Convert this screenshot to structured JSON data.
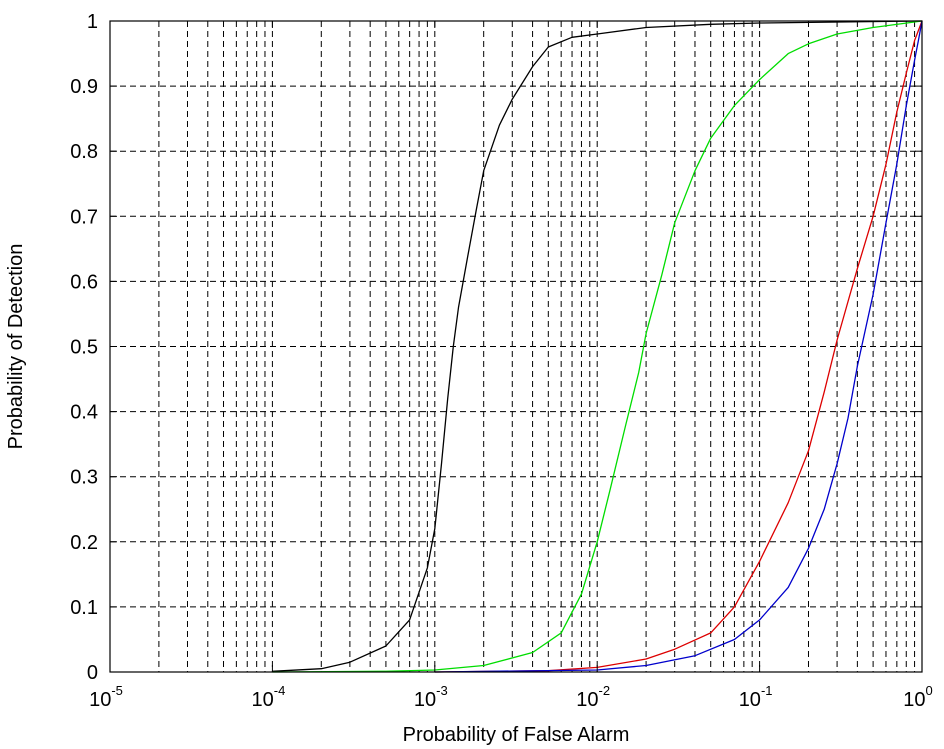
{
  "chart_data": {
    "type": "line",
    "title": "",
    "xlabel": "Probability of False Alarm",
    "ylabel": "Probability of Detection",
    "xscale": "log",
    "xlim": [
      1e-05,
      1
    ],
    "ylim": [
      0,
      1
    ],
    "grid": true,
    "x_ticks": [
      {
        "value": 1e-05,
        "base": "10",
        "exp": "-5"
      },
      {
        "value": 0.0001,
        "base": "10",
        "exp": "-4"
      },
      {
        "value": 0.001,
        "base": "10",
        "exp": "-3"
      },
      {
        "value": 0.01,
        "base": "10",
        "exp": "-2"
      },
      {
        "value": 0.1,
        "base": "10",
        "exp": "-1"
      },
      {
        "value": 1,
        "base": "10",
        "exp": "0"
      }
    ],
    "y_ticks": [
      "0",
      "0.1",
      "0.2",
      "0.3",
      "0.4",
      "0.5",
      "0.6",
      "0.7",
      "0.8",
      "0.9",
      "1"
    ],
    "series": [
      {
        "color": "#000000",
        "points": [
          [
            0.0001,
            0.001
          ],
          [
            0.0002,
            0.005
          ],
          [
            0.0003,
            0.015
          ],
          [
            0.0005,
            0.04
          ],
          [
            0.0007,
            0.08
          ],
          [
            0.0009,
            0.16
          ],
          [
            0.001,
            0.22
          ],
          [
            0.0011,
            0.32
          ],
          [
            0.0012,
            0.42
          ],
          [
            0.0013,
            0.5
          ],
          [
            0.0014,
            0.56
          ],
          [
            0.0016,
            0.64
          ],
          [
            0.0018,
            0.71
          ],
          [
            0.002,
            0.77
          ],
          [
            0.0025,
            0.84
          ],
          [
            0.003,
            0.88
          ],
          [
            0.004,
            0.93
          ],
          [
            0.005,
            0.96
          ],
          [
            0.007,
            0.975
          ],
          [
            0.01,
            0.98
          ],
          [
            0.02,
            0.99
          ],
          [
            0.05,
            0.995
          ],
          [
            0.1,
            0.997
          ],
          [
            1,
            1
          ]
        ]
      },
      {
        "color": "#00dd00",
        "points": [
          [
            0.0001,
            0.0
          ],
          [
            0.0005,
            0.001
          ],
          [
            0.001,
            0.003
          ],
          [
            0.002,
            0.01
          ],
          [
            0.004,
            0.03
          ],
          [
            0.006,
            0.06
          ],
          [
            0.008,
            0.12
          ],
          [
            0.01,
            0.2
          ],
          [
            0.012,
            0.28
          ],
          [
            0.015,
            0.38
          ],
          [
            0.018,
            0.46
          ],
          [
            0.02,
            0.52
          ],
          [
            0.025,
            0.61
          ],
          [
            0.03,
            0.69
          ],
          [
            0.04,
            0.77
          ],
          [
            0.05,
            0.82
          ],
          [
            0.07,
            0.87
          ],
          [
            0.1,
            0.91
          ],
          [
            0.15,
            0.95
          ],
          [
            0.2,
            0.965
          ],
          [
            0.3,
            0.98
          ],
          [
            0.5,
            0.99
          ],
          [
            1,
            1
          ]
        ]
      },
      {
        "color": "#dd0000",
        "points": [
          [
            0.001,
            0.0
          ],
          [
            0.005,
            0.002
          ],
          [
            0.01,
            0.007
          ],
          [
            0.02,
            0.02
          ],
          [
            0.03,
            0.035
          ],
          [
            0.05,
            0.06
          ],
          [
            0.07,
            0.1
          ],
          [
            0.1,
            0.17
          ],
          [
            0.15,
            0.26
          ],
          [
            0.2,
            0.34
          ],
          [
            0.25,
            0.43
          ],
          [
            0.3,
            0.51
          ],
          [
            0.4,
            0.62
          ],
          [
            0.5,
            0.7
          ],
          [
            0.6,
            0.78
          ],
          [
            0.7,
            0.86
          ],
          [
            0.8,
            0.92
          ],
          [
            0.9,
            0.97
          ],
          [
            1,
            1
          ]
        ]
      },
      {
        "color": "#0000cc",
        "points": [
          [
            0.001,
            0.0
          ],
          [
            0.01,
            0.003
          ],
          [
            0.02,
            0.01
          ],
          [
            0.04,
            0.025
          ],
          [
            0.07,
            0.05
          ],
          [
            0.1,
            0.08
          ],
          [
            0.15,
            0.13
          ],
          [
            0.2,
            0.19
          ],
          [
            0.25,
            0.25
          ],
          [
            0.3,
            0.32
          ],
          [
            0.35,
            0.39
          ],
          [
            0.4,
            0.47
          ],
          [
            0.5,
            0.58
          ],
          [
            0.6,
            0.69
          ],
          [
            0.7,
            0.78
          ],
          [
            0.8,
            0.87
          ],
          [
            0.9,
            0.94
          ],
          [
            0.95,
            0.97
          ],
          [
            1,
            1
          ]
        ]
      }
    ]
  }
}
